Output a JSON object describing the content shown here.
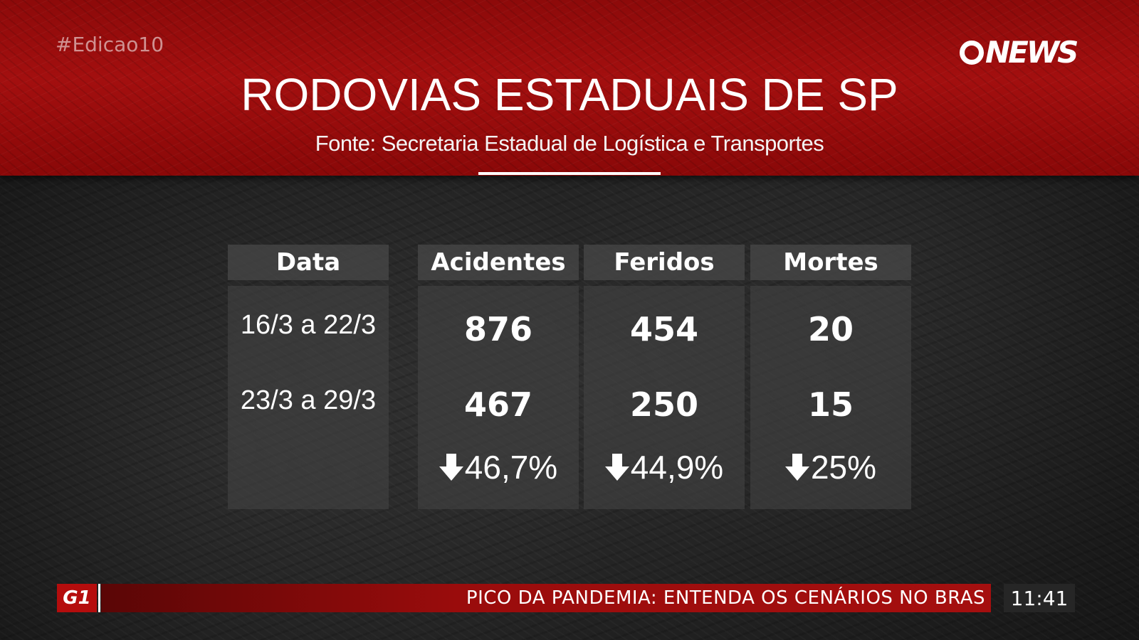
{
  "header": {
    "hashtag": "#Edicao10",
    "logo_text": "NEWS",
    "title": "RODOVIAS ESTADUAIS DE SP",
    "source": "Fonte: Secretaria Estadual de Logística e Transportes"
  },
  "table": {
    "columns": [
      "Data",
      "Acidentes",
      "Feridos",
      "Mortes"
    ],
    "rows": [
      {
        "data": "16/3 a 22/3",
        "acidentes": "876",
        "feridos": "454",
        "mortes": "20"
      },
      {
        "data": "23/3 a 29/3",
        "acidentes": "467",
        "feridos": "250",
        "mortes": "15"
      }
    ],
    "changes": {
      "acidentes": "46,7%",
      "feridos": "44,9%",
      "mortes": "25%"
    },
    "change_icon": "arrow-down-icon"
  },
  "ticker": {
    "brand": "G1",
    "headline": "PICO DA PANDEMIA: ENTENDA OS CENÁRIOS NO BRAS",
    "time": "11:41"
  },
  "colors": {
    "header_red": "#a30f0f",
    "panel_gray": "#424242",
    "ticker_red": "#b50d0d"
  }
}
